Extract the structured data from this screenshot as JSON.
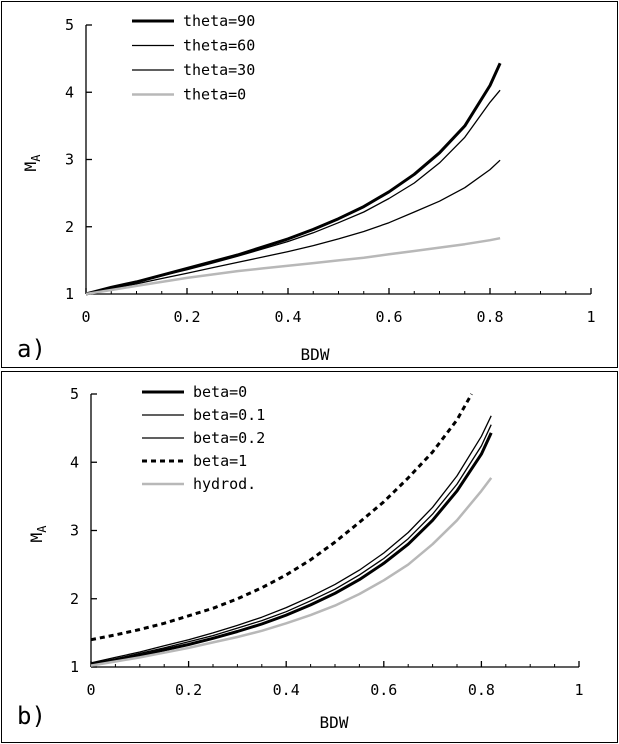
{
  "chart_data": [
    {
      "type": "line",
      "panel_label": "a)",
      "xlabel": "BDW",
      "ylabel_main": "M",
      "ylabel_sub": "A",
      "xlim": [
        0,
        1
      ],
      "ylim": [
        1,
        5
      ],
      "xticks": [
        "0",
        "0.2",
        "0.4",
        "0.6",
        "0.8",
        "1"
      ],
      "yticks": [
        "1",
        "2",
        "3",
        "4",
        "5"
      ],
      "legend_position": "top-left",
      "grid": false,
      "series": [
        {
          "name": "theta=90",
          "color": "#000000",
          "style": "solid",
          "weight": "thick",
          "x": [
            0,
            0.05,
            0.1,
            0.15,
            0.2,
            0.25,
            0.3,
            0.35,
            0.4,
            0.45,
            0.5,
            0.55,
            0.6,
            0.65,
            0.7,
            0.75,
            0.8,
            0.82
          ],
          "y": [
            1.0,
            1.1,
            1.18,
            1.28,
            1.38,
            1.48,
            1.58,
            1.7,
            1.82,
            1.96,
            2.12,
            2.3,
            2.52,
            2.78,
            3.1,
            3.5,
            4.1,
            4.43
          ]
        },
        {
          "name": "theta=60",
          "color": "#000000",
          "style": "solid",
          "weight": "thin",
          "x": [
            0,
            0.05,
            0.1,
            0.15,
            0.2,
            0.25,
            0.3,
            0.35,
            0.4,
            0.45,
            0.5,
            0.55,
            0.6,
            0.65,
            0.7,
            0.75,
            0.8,
            0.82
          ],
          "y": [
            1.0,
            1.09,
            1.17,
            1.27,
            1.36,
            1.46,
            1.56,
            1.67,
            1.78,
            1.91,
            2.06,
            2.22,
            2.42,
            2.65,
            2.95,
            3.33,
            3.85,
            4.03
          ]
        },
        {
          "name": "theta=30",
          "color": "#000000",
          "style": "solid",
          "weight": "thin",
          "x": [
            0,
            0.05,
            0.1,
            0.15,
            0.2,
            0.25,
            0.3,
            0.35,
            0.4,
            0.45,
            0.5,
            0.55,
            0.6,
            0.65,
            0.7,
            0.75,
            0.8,
            0.82
          ],
          "y": [
            1.0,
            1.08,
            1.15,
            1.23,
            1.31,
            1.39,
            1.47,
            1.55,
            1.63,
            1.72,
            1.82,
            1.93,
            2.06,
            2.22,
            2.38,
            2.58,
            2.85,
            2.99
          ]
        },
        {
          "name": "theta=0",
          "color": "#b8b8b8",
          "style": "solid",
          "weight": "medium",
          "x": [
            0,
            0.05,
            0.1,
            0.15,
            0.2,
            0.25,
            0.3,
            0.35,
            0.4,
            0.45,
            0.5,
            0.55,
            0.6,
            0.65,
            0.7,
            0.75,
            0.8,
            0.82
          ],
          "y": [
            1.0,
            1.06,
            1.12,
            1.18,
            1.24,
            1.29,
            1.34,
            1.38,
            1.42,
            1.46,
            1.5,
            1.54,
            1.59,
            1.64,
            1.69,
            1.74,
            1.8,
            1.83
          ]
        }
      ]
    },
    {
      "type": "line",
      "panel_label": "b)",
      "xlabel": "BDW",
      "ylabel_main": "M",
      "ylabel_sub": "A",
      "xlim": [
        0,
        1
      ],
      "ylim": [
        1,
        5
      ],
      "xticks": [
        "0",
        "0.2",
        "0.4",
        "0.6",
        "0.8",
        "1"
      ],
      "yticks": [
        "1",
        "2",
        "3",
        "4",
        "5"
      ],
      "legend_position": "top-left",
      "grid": false,
      "series": [
        {
          "name": "beta=0",
          "color": "#000000",
          "style": "solid",
          "weight": "thick",
          "x": [
            0,
            0.05,
            0.1,
            0.15,
            0.2,
            0.25,
            0.3,
            0.35,
            0.4,
            0.45,
            0.5,
            0.55,
            0.6,
            0.65,
            0.7,
            0.75,
            0.8,
            0.82
          ],
          "y": [
            1.03,
            1.1,
            1.17,
            1.25,
            1.33,
            1.42,
            1.52,
            1.63,
            1.76,
            1.91,
            2.08,
            2.28,
            2.52,
            2.8,
            3.15,
            3.58,
            4.12,
            4.43
          ]
        },
        {
          "name": "beta=0.1",
          "color": "#000000",
          "style": "solid",
          "weight": "thin",
          "x": [
            0,
            0.05,
            0.1,
            0.15,
            0.2,
            0.25,
            0.3,
            0.35,
            0.4,
            0.45,
            0.5,
            0.55,
            0.6,
            0.65,
            0.7,
            0.75,
            0.8,
            0.82
          ],
          "y": [
            1.06,
            1.14,
            1.22,
            1.31,
            1.4,
            1.5,
            1.61,
            1.73,
            1.87,
            2.03,
            2.21,
            2.42,
            2.67,
            2.97,
            3.34,
            3.8,
            4.38,
            4.68
          ]
        },
        {
          "name": "beta=0.2",
          "color": "#000000",
          "style": "solid",
          "weight": "thin",
          "x": [
            0,
            0.05,
            0.1,
            0.15,
            0.2,
            0.25,
            0.3,
            0.35,
            0.4,
            0.45,
            0.5,
            0.55,
            0.6,
            0.65,
            0.7,
            0.75,
            0.8,
            0.82
          ],
          "y": [
            1.05,
            1.12,
            1.2,
            1.28,
            1.37,
            1.46,
            1.57,
            1.68,
            1.81,
            1.97,
            2.14,
            2.35,
            2.59,
            2.88,
            3.24,
            3.68,
            4.24,
            4.55
          ]
        },
        {
          "name": "beta=1",
          "color": "#000000",
          "style": "dashed",
          "weight": "thick",
          "x": [
            0,
            0.05,
            0.1,
            0.15,
            0.2,
            0.25,
            0.3,
            0.35,
            0.4,
            0.45,
            0.5,
            0.55,
            0.6,
            0.65,
            0.7,
            0.75,
            0.78
          ],
          "y": [
            1.4,
            1.47,
            1.55,
            1.64,
            1.75,
            1.86,
            2.0,
            2.16,
            2.35,
            2.57,
            2.83,
            3.12,
            3.42,
            3.77,
            4.15,
            4.62,
            5.0
          ]
        },
        {
          "name": "hydrod.",
          "color": "#b8b8b8",
          "style": "solid",
          "weight": "medium",
          "x": [
            0,
            0.05,
            0.1,
            0.15,
            0.2,
            0.25,
            0.3,
            0.35,
            0.4,
            0.45,
            0.5,
            0.55,
            0.6,
            0.65,
            0.7,
            0.75,
            0.8,
            0.82
          ],
          "y": [
            1.02,
            1.08,
            1.14,
            1.21,
            1.28,
            1.36,
            1.44,
            1.53,
            1.64,
            1.76,
            1.9,
            2.07,
            2.27,
            2.5,
            2.8,
            3.15,
            3.58,
            3.77
          ]
        }
      ]
    }
  ]
}
